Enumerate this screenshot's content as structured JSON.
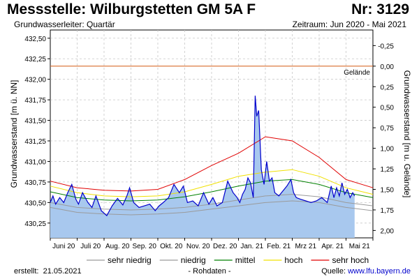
{
  "header": {
    "title": "Messstelle: Wilburgstetten GM 5A F",
    "nr": "Nr: 3129",
    "subtitle": "Grundwasserleiter: Quartär",
    "period": "Zeitraum: Jun 2020 - Mai 2021"
  },
  "footer": {
    "created_label": "erstellt:",
    "created_date": "21.05.2021",
    "status": "- Rohdaten -",
    "source_label": "Quelle:",
    "source_link": "www.lfu.bayern.de"
  },
  "colors": {
    "measured_line": "#0000cc",
    "measured_fill": "#a8c8ee",
    "terrain": "#d86a2a",
    "sehr_niedrig": "#9a9a9a",
    "niedrig": "#9a9a9a",
    "mittel": "#008000",
    "hoch": "#f0e000",
    "sehr_hoch": "#e00000",
    "grid": "#c8c8c8"
  },
  "chart_data": {
    "type": "line",
    "title": "",
    "ylabel": "Grundwasserstand [m ü. NN]",
    "y2label": "Grundwasserstand [m u. Gelände]",
    "ylim": [
      430.07,
      432.6
    ],
    "y_ticks": [
      "430,25",
      "430,50",
      "430,75",
      "431,00",
      "431,25",
      "431,50",
      "431,75",
      "432,00",
      "432,25",
      "432,50"
    ],
    "y2_ticks": [
      "-0,25",
      "0,00",
      "0,25",
      "0,50",
      "0,75",
      "1,00",
      "1,25",
      "1,50",
      "1,75",
      "2,00"
    ],
    "x_ticks": [
      "Juni 20",
      "Juli 20",
      "Aug. 20",
      "Sep. 20",
      "Okt. 20",
      "Nov. 20",
      "Dez. 20",
      "Jan. 21",
      "Feb. 21",
      "Mrz 21",
      "Apr. 21",
      "Mai 21"
    ],
    "grid": true,
    "terrain_level": 432.16,
    "terrain_label": "Gelände",
    "legend_position": "bottom",
    "legend": [
      "sehr niedrig",
      "niedrig",
      "mittel",
      "hoch",
      "sehr hoch"
    ],
    "months_x": [
      0,
      1,
      2,
      3,
      4,
      5,
      6,
      7,
      8,
      9,
      10,
      11,
      12
    ],
    "series": [
      {
        "name": "sehr niedrig",
        "values": [
          430.44,
          430.38,
          430.36,
          430.35,
          430.36,
          430.38,
          430.42,
          430.46,
          430.5,
          430.52,
          430.5,
          430.44,
          430.4
        ]
      },
      {
        "name": "niedrig",
        "values": [
          430.5,
          430.44,
          430.42,
          430.41,
          430.42,
          430.44,
          430.48,
          430.53,
          430.58,
          430.6,
          430.57,
          430.5,
          430.46
        ]
      },
      {
        "name": "mittel",
        "values": [
          430.63,
          430.56,
          430.53,
          430.52,
          430.53,
          430.57,
          430.63,
          430.7,
          430.76,
          430.78,
          430.72,
          430.62,
          430.56
        ]
      },
      {
        "name": "hoch",
        "values": [
          430.7,
          430.62,
          430.58,
          430.57,
          430.58,
          430.63,
          430.72,
          430.82,
          430.87,
          430.9,
          430.82,
          430.68,
          430.6
        ]
      },
      {
        "name": "sehr hoch",
        "values": [
          430.76,
          430.68,
          430.65,
          430.64,
          430.66,
          430.78,
          430.95,
          431.1,
          431.3,
          431.25,
          431.05,
          430.78,
          430.68
        ]
      }
    ],
    "measured": {
      "name": "Rohdaten",
      "x": [
        0,
        0.1,
        0.2,
        0.35,
        0.5,
        0.65,
        0.8,
        0.95,
        1.05,
        1.2,
        1.4,
        1.55,
        1.7,
        1.9,
        2.1,
        2.3,
        2.5,
        2.7,
        2.85,
        2.95,
        3.1,
        3.3,
        3.5,
        3.7,
        3.9,
        4.05,
        4.2,
        4.4,
        4.6,
        4.8,
        4.95,
        5.1,
        5.3,
        5.5,
        5.7,
        5.9,
        6.05,
        6.2,
        6.4,
        6.6,
        6.8,
        6.95,
        7.05,
        7.15,
        7.25,
        7.35,
        7.45,
        7.55,
        7.62,
        7.68,
        7.75,
        7.85,
        7.95,
        8.05,
        8.15,
        8.25,
        8.35,
        8.5,
        8.65,
        8.8,
        8.95,
        9.05,
        9.15,
        9.3,
        9.5,
        9.7,
        9.9,
        10.1,
        10.3,
        10.45,
        10.55,
        10.65,
        10.75,
        10.85,
        10.95,
        11.05,
        11.15,
        11.25,
        11.32
      ],
      "values": [
        430.5,
        430.58,
        430.48,
        430.56,
        430.5,
        430.62,
        430.72,
        430.54,
        430.48,
        430.62,
        430.5,
        430.44,
        430.58,
        430.4,
        430.34,
        430.46,
        430.55,
        430.47,
        430.58,
        430.68,
        430.5,
        430.44,
        430.46,
        430.48,
        430.4,
        430.46,
        430.5,
        430.56,
        430.72,
        430.62,
        430.7,
        430.5,
        430.52,
        430.46,
        430.62,
        430.48,
        430.56,
        430.46,
        430.5,
        430.76,
        430.62,
        430.56,
        430.5,
        430.6,
        430.66,
        430.8,
        430.74,
        430.56,
        431.8,
        431.55,
        431.62,
        430.9,
        430.72,
        431.0,
        430.76,
        430.8,
        430.62,
        430.58,
        430.64,
        430.7,
        430.78,
        430.62,
        430.56,
        430.54,
        430.52,
        430.5,
        430.52,
        430.56,
        430.5,
        430.7,
        430.56,
        430.68,
        430.58,
        430.74,
        430.6,
        430.66,
        430.56,
        430.62,
        430.58
      ]
    }
  }
}
